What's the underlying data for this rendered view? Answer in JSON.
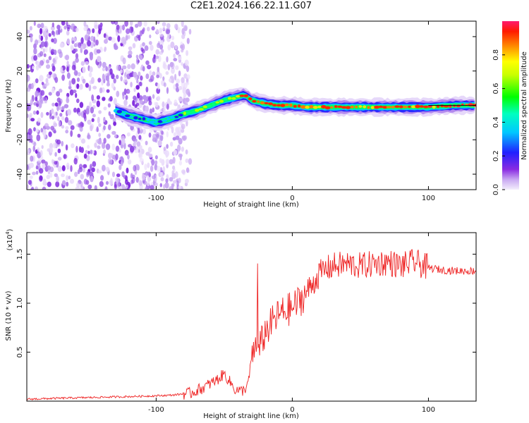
{
  "title": "C2E1.2024.166.22.11.G07",
  "colors": {
    "snr_line": "#ee2222",
    "axis": "#000000"
  },
  "chart_data": [
    {
      "type": "heatmap",
      "title": "C2E1.2024.166.22.11.G07",
      "xlabel": "Height of straight line (km)",
      "ylabel": "Frequency (Hz)",
      "xlim": [
        -195,
        135
      ],
      "ylim": [
        -49,
        49
      ],
      "x_ticks": [
        -100,
        0,
        100
      ],
      "y_ticks": [
        -40,
        -20,
        0,
        20,
        40
      ],
      "colorbar": {
        "label": "Normalized spectral amplitude",
        "range": [
          0,
          1
        ],
        "ticks": [
          0.0,
          0.2,
          0.4,
          0.6,
          0.8
        ],
        "colormap": "rainbow (violet-blue-cyan-green-yellow-red)"
      },
      "ridge": {
        "x": [
          -130,
          -120,
          -110,
          -100,
          -90,
          -80,
          -70,
          -60,
          -50,
          -40,
          -35,
          -30,
          -20,
          -10,
          0,
          10,
          20,
          40,
          60,
          80,
          100,
          120,
          135
        ],
        "freq": [
          -3,
          -6,
          -8,
          -10,
          -8,
          -5,
          -3,
          0,
          3,
          5,
          6,
          3,
          1,
          0,
          0,
          -1,
          -1,
          -1,
          -1,
          -1,
          -1,
          0,
          0
        ]
      },
      "noise_region_x": [
        -195,
        -80
      ]
    },
    {
      "type": "line",
      "xlabel": "Height of straight line (km)",
      "ylabel": "SNR (10 * v/v)",
      "y_scale_label": "(x10",
      "y_scale_exponent": "4",
      "xlim": [
        -195,
        135
      ],
      "ylim": [
        0,
        1.72
      ],
      "x_ticks": [
        -100,
        0,
        100
      ],
      "y_ticks": [
        0.5,
        1.0,
        1.5
      ],
      "y_tick_labels": [
        "0.5",
        "1.0",
        "1.5"
      ],
      "series": [
        {
          "x": [
            -195,
            -170,
            -140,
            -110,
            -90,
            -75,
            -65,
            -55,
            -50,
            -46,
            -42,
            -38,
            -35,
            -32,
            -30,
            -28,
            -26,
            -24,
            -22,
            -20,
            -15,
            -10,
            -5,
            0,
            5,
            10,
            15,
            20,
            25,
            30,
            40,
            50,
            60,
            70,
            80,
            90,
            100,
            110,
            120,
            135
          ],
          "y": [
            0.02,
            0.03,
            0.04,
            0.05,
            0.06,
            0.08,
            0.14,
            0.22,
            0.28,
            0.2,
            0.12,
            0.1,
            0.12,
            0.2,
            0.45,
            0.55,
            0.5,
            0.55,
            0.62,
            0.7,
            0.8,
            0.88,
            0.92,
            0.95,
            1.02,
            1.1,
            1.2,
            1.3,
            1.35,
            1.38,
            1.4,
            1.38,
            1.4,
            1.42,
            1.38,
            1.42,
            1.36,
            1.34,
            1.33,
            1.33
          ]
        }
      ]
    }
  ]
}
